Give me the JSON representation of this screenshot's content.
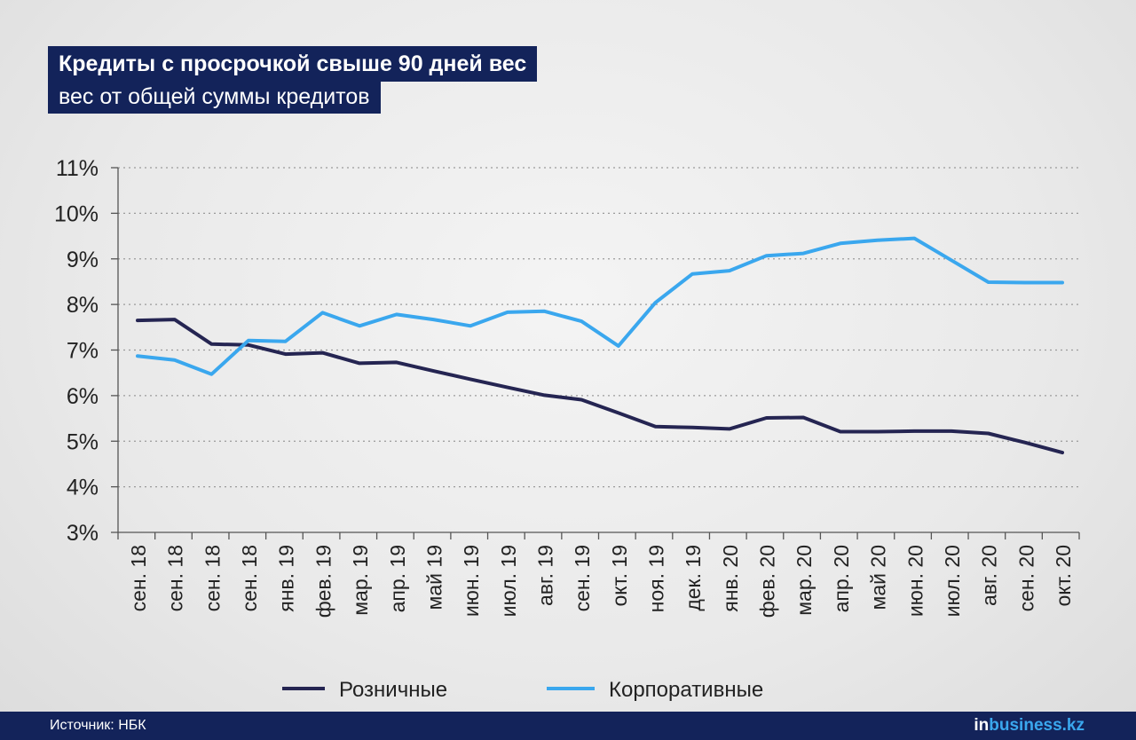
{
  "title": "Кредиты с просрочкой свыше 90 дней вес",
  "subtitle": "вес от общей суммы кредитов",
  "footer": {
    "source": "Источник: НБК",
    "brand_prefix": "in",
    "brand_rest": "business.kz"
  },
  "colors": {
    "retail": "#252552",
    "corporate": "#3aa7ee",
    "grid": "#9a9a9a",
    "axis": "#555555",
    "text": "#222222",
    "header_bg": "#13235a"
  },
  "chart_data": {
    "type": "line",
    "categories": [
      "сен. 18",
      "сен. 18",
      "сен. 18",
      "сен. 18",
      "янв. 19",
      "фев. 19",
      "мар. 19",
      "апр. 19",
      "май 19",
      "июн. 19",
      "июл. 19",
      "авг. 19",
      "сен. 19",
      "окт. 19",
      "ноя. 19",
      "дек. 19",
      "янв. 20",
      "фев. 20",
      "мар. 20",
      "апр. 20",
      "май 20",
      "июн. 20",
      "июл. 20",
      "авг. 20",
      "сен. 20",
      "окт. 20"
    ],
    "y_ticks": [
      "3%",
      "4%",
      "5%",
      "6%",
      "7%",
      "8%",
      "9%",
      "10%",
      "11%"
    ],
    "ylim": [
      3,
      11
    ],
    "grid": true,
    "legend_position": "bottom",
    "series": [
      {
        "name": "Розничные",
        "color": "#252552",
        "values": [
          7.65,
          7.67,
          7.13,
          7.11,
          6.91,
          6.94,
          6.71,
          6.73,
          6.54,
          6.36,
          6.18,
          6.01,
          5.91,
          5.62,
          5.32,
          5.3,
          5.27,
          5.51,
          5.52,
          5.21,
          5.21,
          5.22,
          5.22,
          5.17,
          4.97,
          4.75
        ]
      },
      {
        "name": "Корпоративные",
        "color": "#3aa7ee",
        "values": [
          6.87,
          6.78,
          6.47,
          7.21,
          7.19,
          7.82,
          7.53,
          7.78,
          7.67,
          7.53,
          7.83,
          7.85,
          7.63,
          7.09,
          8.04,
          8.67,
          8.74,
          9.07,
          9.12,
          9.34,
          9.41,
          9.45,
          8.97,
          8.49,
          8.48,
          8.48
        ]
      }
    ]
  }
}
